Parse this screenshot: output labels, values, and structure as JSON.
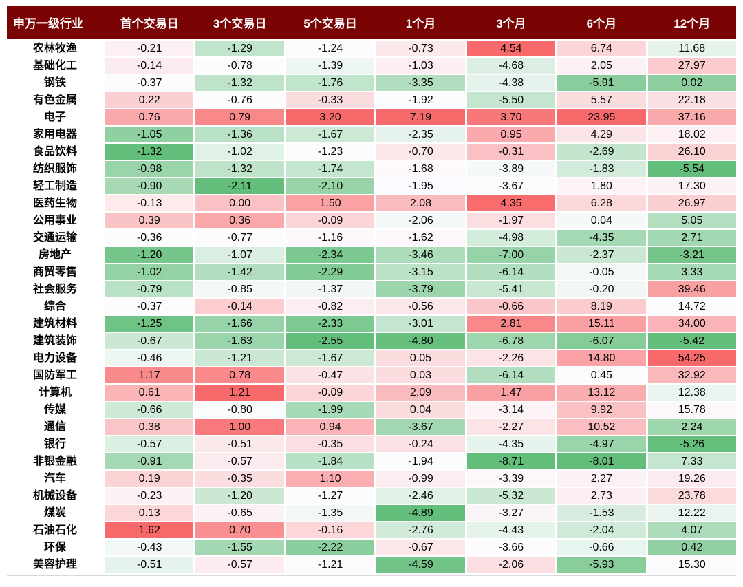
{
  "chart_data": {
    "type": "heatmap",
    "row_header_label": "申万一级行业",
    "columns": [
      "首个交易日",
      "3个交易日",
      "5个交易日",
      "1个月",
      "3个月",
      "6个月",
      "12个月"
    ],
    "rows": [
      {
        "name": "农林牧渔",
        "values": [
          -0.21,
          -1.29,
          -1.24,
          -0.73,
          4.54,
          6.74,
          11.68
        ]
      },
      {
        "name": "基础化工",
        "values": [
          -0.14,
          -0.78,
          -1.39,
          -1.03,
          -4.68,
          2.05,
          27.97
        ]
      },
      {
        "name": "钢铁",
        "values": [
          -0.37,
          -1.32,
          -1.76,
          -3.35,
          -4.38,
          -5.91,
          0.02
        ]
      },
      {
        "name": "有色金属",
        "values": [
          0.22,
          -0.76,
          -0.33,
          -1.92,
          -5.5,
          5.57,
          22.18
        ]
      },
      {
        "name": "电子",
        "values": [
          0.76,
          0.79,
          3.2,
          7.19,
          3.7,
          23.95,
          37.16
        ]
      },
      {
        "name": "家用电器",
        "values": [
          -1.05,
          -1.36,
          -1.67,
          -2.35,
          0.95,
          4.29,
          18.02
        ]
      },
      {
        "name": "食品饮料",
        "values": [
          -1.32,
          -1.02,
          -1.23,
          -0.7,
          -0.31,
          -2.69,
          26.1
        ]
      },
      {
        "name": "纺织服饰",
        "values": [
          -0.98,
          -1.32,
          -1.74,
          -1.68,
          -3.89,
          -1.83,
          -5.54
        ]
      },
      {
        "name": "轻工制造",
        "values": [
          -0.9,
          -2.11,
          -2.1,
          -1.95,
          -3.67,
          1.8,
          17.3
        ]
      },
      {
        "name": "医药生物",
        "values": [
          -0.13,
          0.0,
          1.5,
          2.08,
          4.35,
          6.28,
          26.97
        ]
      },
      {
        "name": "公用事业",
        "values": [
          0.39,
          0.36,
          -0.09,
          -2.06,
          -1.97,
          0.04,
          5.05
        ]
      },
      {
        "name": "交通运输",
        "values": [
          -0.36,
          -0.77,
          -1.16,
          -1.62,
          -4.98,
          -4.35,
          2.71
        ]
      },
      {
        "name": "房地产",
        "values": [
          -1.2,
          -1.07,
          -2.34,
          -3.46,
          -7.0,
          -2.37,
          -3.21
        ]
      },
      {
        "name": "商贸零售",
        "values": [
          -1.02,
          -1.42,
          -2.29,
          -3.15,
          -6.14,
          -0.05,
          3.33
        ]
      },
      {
        "name": "社会服务",
        "values": [
          -0.79,
          -0.85,
          -1.37,
          -3.79,
          -5.41,
          -0.2,
          39.46
        ]
      },
      {
        "name": "综合",
        "values": [
          -0.37,
          -0.14,
          -0.82,
          -0.56,
          -0.66,
          8.19,
          14.72
        ]
      },
      {
        "name": "建筑材料",
        "values": [
          -1.25,
          -1.66,
          -2.33,
          -3.01,
          2.81,
          15.11,
          34.0
        ]
      },
      {
        "name": "建筑装饰",
        "values": [
          -0.67,
          -1.63,
          -2.55,
          -4.8,
          -6.78,
          -6.07,
          -5.42
        ]
      },
      {
        "name": "电力设备",
        "values": [
          -0.46,
          -1.21,
          -1.67,
          0.05,
          -2.26,
          14.8,
          54.25
        ]
      },
      {
        "name": "国防军工",
        "values": [
          1.17,
          0.78,
          -0.47,
          0.03,
          -6.14,
          0.45,
          32.92
        ]
      },
      {
        "name": "计算机",
        "values": [
          0.61,
          1.21,
          -0.09,
          2.09,
          1.47,
          13.12,
          12.38
        ]
      },
      {
        "name": "传媒",
        "values": [
          -0.66,
          -0.8,
          -1.99,
          0.04,
          -3.14,
          9.92,
          15.78
        ]
      },
      {
        "name": "通信",
        "values": [
          0.38,
          1.0,
          0.94,
          -3.67,
          -2.27,
          10.52,
          2.24
        ]
      },
      {
        "name": "银行",
        "values": [
          -0.57,
          -0.51,
          -0.35,
          -0.24,
          -4.35,
          -4.97,
          -5.26
        ]
      },
      {
        "name": "非银金融",
        "values": [
          -0.91,
          -0.57,
          -1.84,
          -1.94,
          -8.71,
          -8.01,
          7.33
        ]
      },
      {
        "name": "汽车",
        "values": [
          0.19,
          -0.35,
          1.1,
          -0.99,
          -3.39,
          2.27,
          19.26
        ]
      },
      {
        "name": "机械设备",
        "values": [
          -0.23,
          -1.2,
          -1.27,
          -2.46,
          -5.32,
          2.73,
          23.78
        ]
      },
      {
        "name": "煤炭",
        "values": [
          0.13,
          -0.65,
          -1.35,
          -4.89,
          -3.27,
          -1.53,
          12.22
        ]
      },
      {
        "name": "石油石化",
        "values": [
          1.62,
          0.7,
          -0.16,
          -2.76,
          -4.43,
          -2.04,
          4.07
        ]
      },
      {
        "name": "环保",
        "values": [
          -0.43,
          -1.55,
          -2.22,
          -0.67,
          -3.66,
          -0.66,
          0.42
        ]
      },
      {
        "name": "美容护理",
        "values": [
          -0.51,
          -0.57,
          -1.21,
          -4.59,
          -2.06,
          -5.93,
          15.3
        ]
      }
    ],
    "color_scale": {
      "applied": "per-column",
      "midpoint": "column median",
      "min_color": "#63BE7B",
      "mid_color": "#FCFCFF",
      "max_color": "#F8696B"
    },
    "colors": {
      "header_bg": "#7A0404",
      "header_text": "#FFFFFF",
      "body_text": "#000000",
      "grid": "#FFFFFF"
    },
    "value_format": "two decimals, no sign for positives"
  }
}
